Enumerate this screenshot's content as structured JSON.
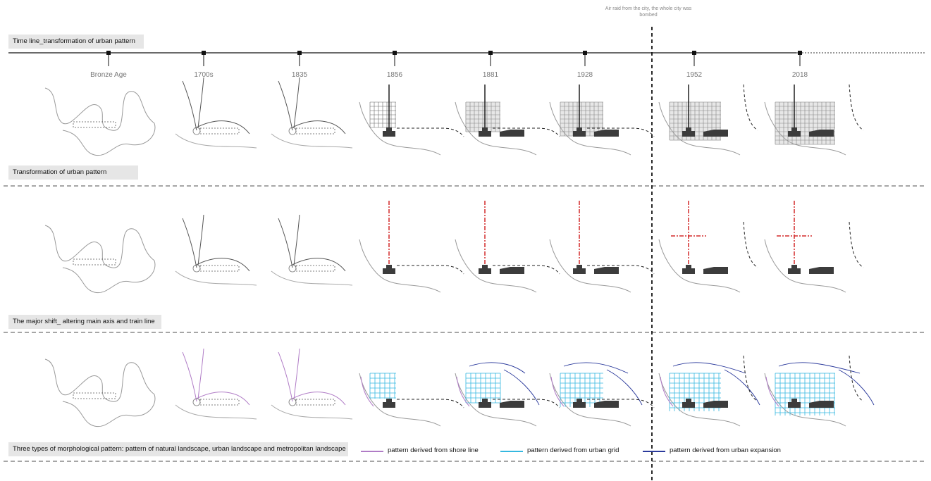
{
  "timeline": {
    "title": "Time line_transformation of urban pattern",
    "air_raid_note": "Air raid from the city, the whole city was bombed",
    "periods": [
      "Bronze Age",
      "1700s",
      "1835",
      "1856",
      "1881",
      "1928",
      "1952",
      "2018"
    ]
  },
  "rows": [
    {
      "label": "Transformation of urban pattern"
    },
    {
      "label": "The major shift_ altering main axis and train line"
    },
    {
      "label": "Three types of morphological pattern: pattern of natural landscape, urban landscape and metropolitan landscape"
    }
  ],
  "legend": [
    {
      "label": "pattern derived from shore line",
      "color": "#b07cc6"
    },
    {
      "label": "pattern derived from urban grid",
      "color": "#35b8e0"
    },
    {
      "label": "pattern derived from urban expansion",
      "color": "#2b3a9c"
    }
  ],
  "colors": {
    "axis_red": "#d42a2a",
    "block_dark": "#3c3c3c"
  }
}
